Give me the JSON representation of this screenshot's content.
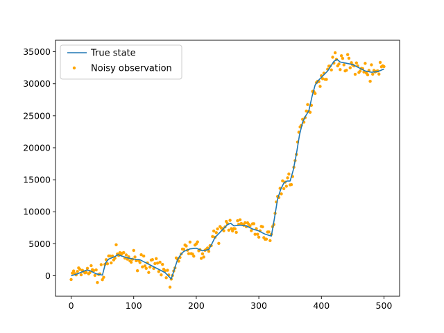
{
  "chart_data": {
    "type": "line+scatter",
    "title": "",
    "xlabel": "",
    "ylabel": "",
    "xlim": [
      -25,
      525
    ],
    "ylim": [
      -3200,
      36800
    ],
    "xticks": [
      0,
      100,
      200,
      300,
      400,
      500
    ],
    "yticks": [
      0,
      5000,
      10000,
      15000,
      20000,
      25000,
      30000,
      35000
    ],
    "grid": false,
    "legend_position": "top-left",
    "series": [
      {
        "name": "True state",
        "kind": "line",
        "color": "#1f77b4",
        "x": [
          0,
          10,
          20,
          25,
          30,
          40,
          50,
          55,
          60,
          65,
          70,
          75,
          80,
          90,
          100,
          110,
          120,
          130,
          140,
          150,
          160,
          165,
          170,
          175,
          180,
          190,
          200,
          210,
          220,
          225,
          230,
          240,
          250,
          255,
          260,
          270,
          280,
          290,
          300,
          310,
          320,
          325,
          330,
          335,
          340,
          345,
          350,
          355,
          360,
          365,
          370,
          375,
          380,
          385,
          390,
          395,
          400,
          410,
          420,
          425,
          430,
          440,
          450,
          460,
          470,
          480,
          490,
          500
        ],
        "y": [
          0,
          300,
          700,
          900,
          800,
          300,
          100,
          2000,
          2600,
          2800,
          3000,
          3300,
          3100,
          2800,
          2600,
          2500,
          2000,
          1500,
          1000,
          500,
          -500,
          1000,
          2500,
          3300,
          3800,
          4200,
          4300,
          3900,
          4100,
          5000,
          6000,
          7000,
          8000,
          8200,
          7800,
          7900,
          7800,
          7300,
          7000,
          6500,
          6200,
          9000,
          12000,
          13500,
          14500,
          14800,
          14800,
          16500,
          19000,
          22000,
          24000,
          25000,
          25800,
          28000,
          29800,
          30500,
          31000,
          32000,
          33500,
          33800,
          33400,
          33200,
          33000,
          32500,
          32000,
          31800,
          31900,
          32300
        ]
      },
      {
        "name": "Noisy observation",
        "kind": "scatter",
        "color": "#ffa500"
      }
    ]
  }
}
